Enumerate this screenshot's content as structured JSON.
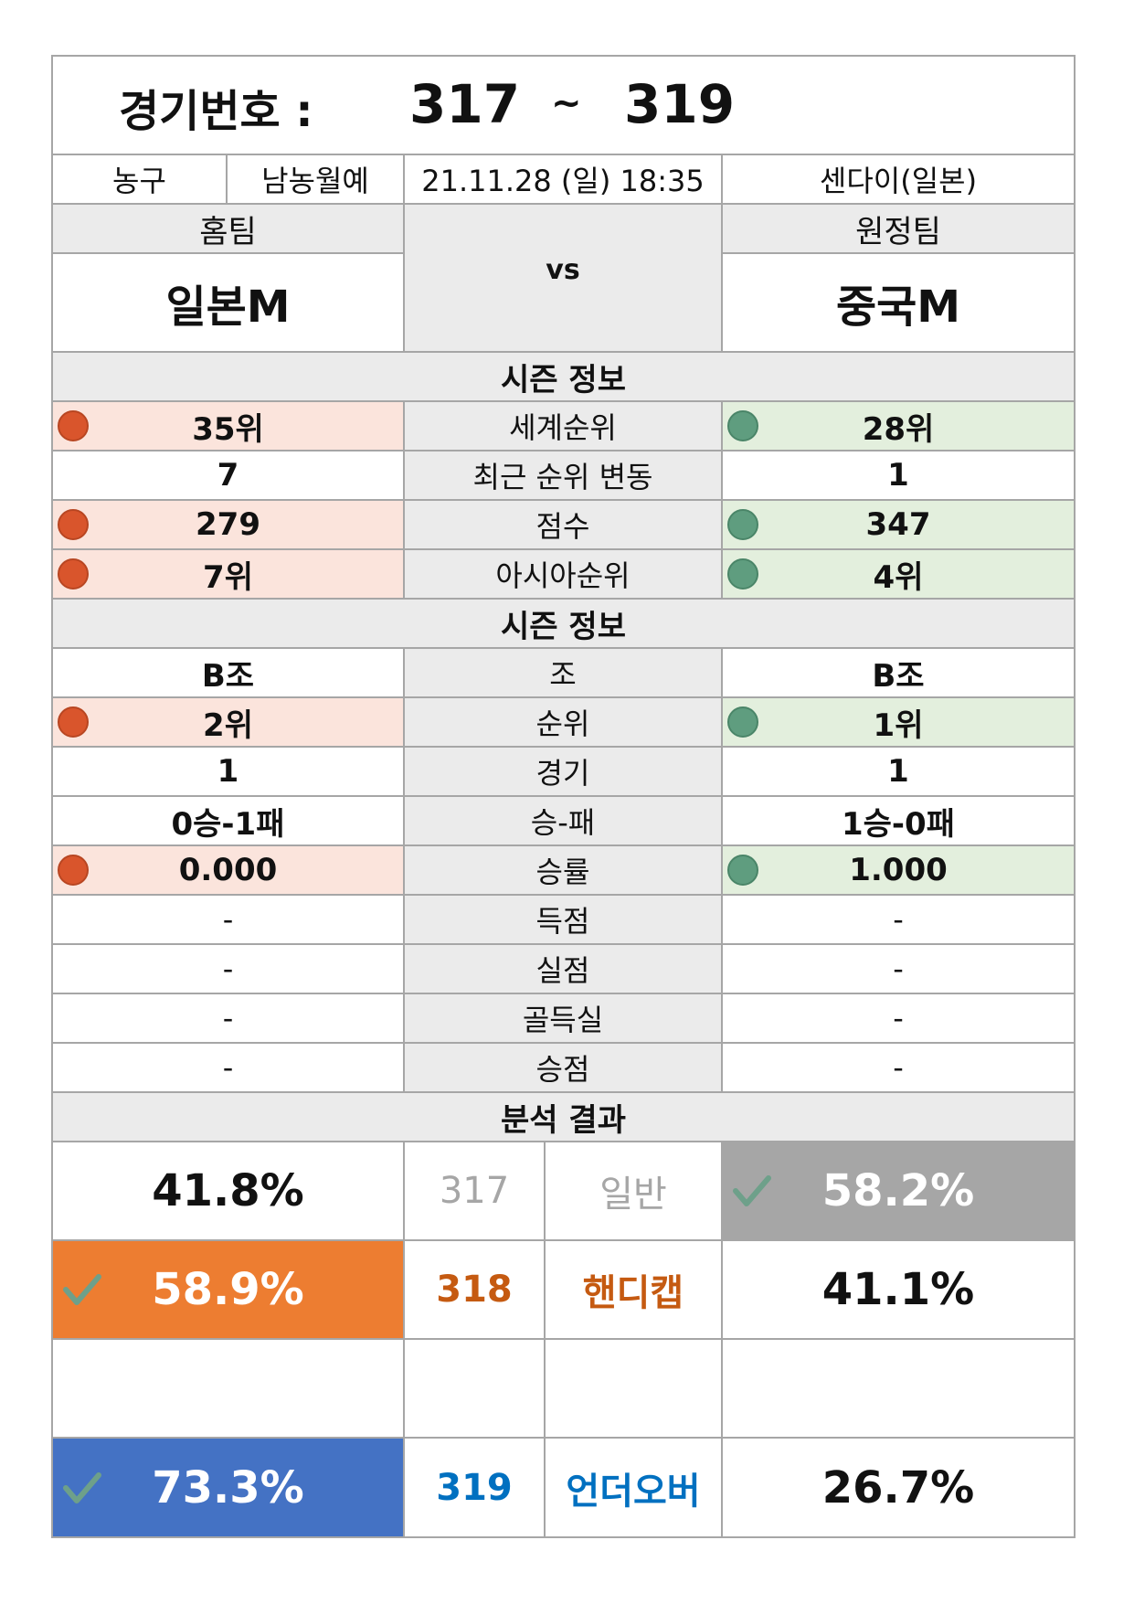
{
  "header": {
    "label": "경기번호 :",
    "start": "317",
    "sep": "~",
    "end": "319"
  },
  "info": {
    "sport": "농구",
    "league": "남농월예",
    "datetime": "21.11.28 (일) 18:35",
    "venue": "센다이(일본)"
  },
  "teams": {
    "home_label": "홈팀",
    "away_label": "원정팀",
    "home": "일본M",
    "away": "중국M",
    "vs": "vs"
  },
  "section1_title": "시즌 정보",
  "season_rows": [
    {
      "label": "세계순위",
      "home": "35위",
      "away": "28위"
    },
    {
      "label": "최근 순위 변동",
      "home": "7",
      "away": "1"
    },
    {
      "label": "점수",
      "home": "279",
      "away": "347"
    },
    {
      "label": "아시아순위",
      "home": "7위",
      "away": "4위"
    }
  ],
  "section2_title": "시즌 정보",
  "group_rows": [
    {
      "label": "조",
      "home": "B조",
      "away": "B조"
    },
    {
      "label": "순위",
      "home": "2위",
      "away": "1위"
    },
    {
      "label": "경기",
      "home": "1",
      "away": "1"
    },
    {
      "label": "승-패",
      "home": "0승-1패",
      "away": "1승-0패"
    },
    {
      "label": "승률",
      "home": "0.000",
      "away": "1.000"
    },
    {
      "label": "득점",
      "home": "-",
      "away": "-"
    },
    {
      "label": "실점",
      "home": "-",
      "away": "-"
    },
    {
      "label": "골득실",
      "home": "-",
      "away": "-"
    },
    {
      "label": "승점",
      "home": "-",
      "away": "-"
    }
  ],
  "analysis_title": "분석 결과",
  "analysis": [
    {
      "home": "41.8%",
      "no": "317",
      "type": "일반",
      "away": "58.2%"
    },
    {
      "home": "58.9%",
      "no": "318",
      "type": "핸디캡",
      "away": "41.1%"
    },
    {
      "home": "",
      "no": "",
      "type": "",
      "away": ""
    },
    {
      "home": "73.3%",
      "no": "319",
      "type": "언더오버",
      "away": "26.7%"
    }
  ],
  "colors": {
    "border": "#a6a6a6",
    "gray_fill": "#ebebeb",
    "home_highlight": "#fbe4dc",
    "away_highlight": "#e3efdd",
    "red_dot": "#d9552c",
    "green_dot": "#5f9d7f",
    "general": "#a6a6a6",
    "handicap": "#ed7d31",
    "handicap_text": "#c55a11",
    "underover": "#4472c4",
    "underover_text": "#0070c0"
  },
  "icons": [
    "red-circle-icon",
    "green-circle-icon",
    "check-icon"
  ]
}
